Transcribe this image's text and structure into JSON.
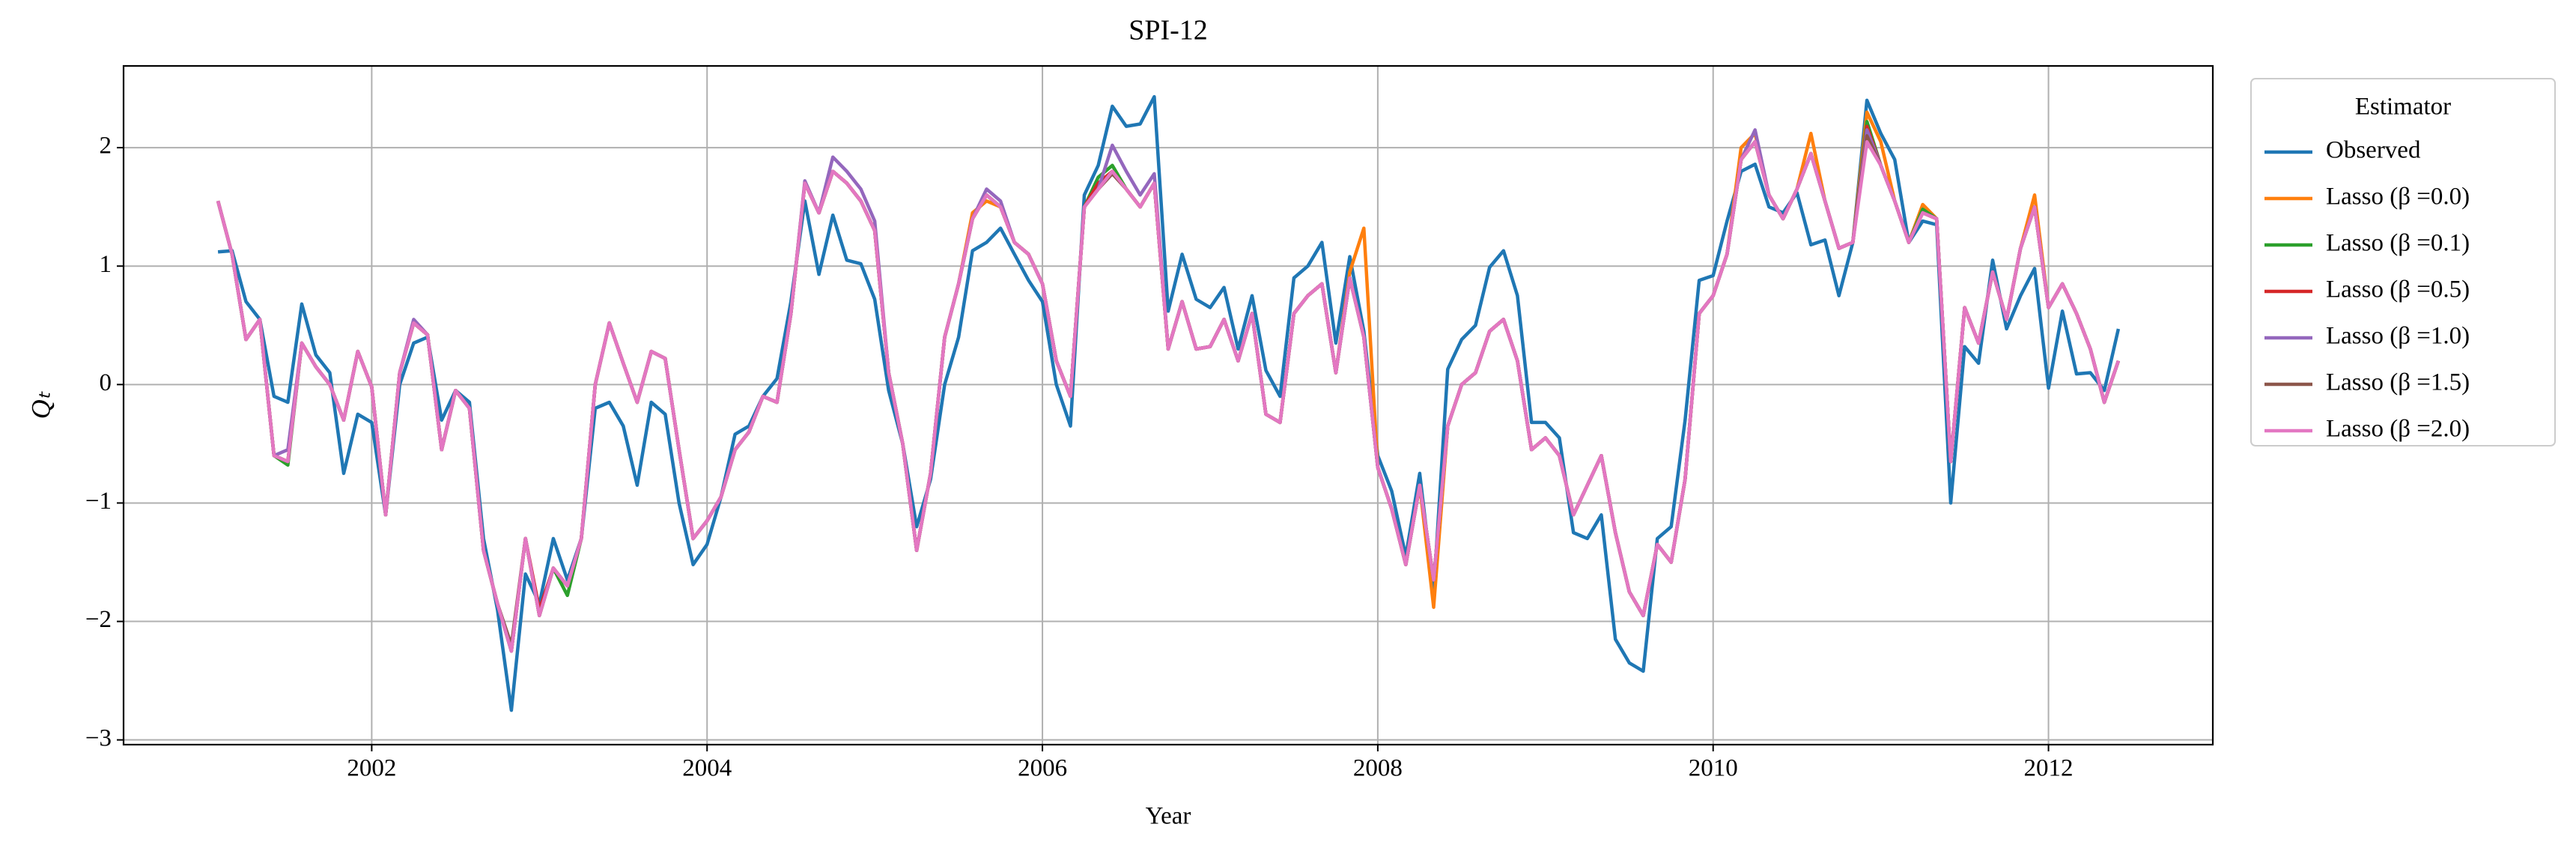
{
  "chart_data": {
    "type": "line",
    "title": "SPI-12",
    "xlabel": "Year",
    "ylabel": "Qₜ",
    "legend_title": "Estimator",
    "legend": "outside upper right",
    "grid": true,
    "xlim": [
      2000.52,
      2012.98
    ],
    "ylim": [
      -3.04,
      2.69
    ],
    "xticks": [
      2002,
      2004,
      2006,
      2008,
      2010,
      2012
    ],
    "yticks": [
      {
        "value": -3,
        "label": "−3"
      },
      {
        "value": -2,
        "label": "−2"
      },
      {
        "value": -1,
        "label": "−1"
      },
      0,
      1,
      2
    ],
    "x": [
      2001.083,
      2001.167,
      2001.25,
      2001.333,
      2001.417,
      2001.5,
      2001.583,
      2001.667,
      2001.75,
      2001.833,
      2001.917,
      2002,
      2002.083,
      2002.167,
      2002.25,
      2002.333,
      2002.417,
      2002.5,
      2002.583,
      2002.667,
      2002.75,
      2002.833,
      2002.917,
      2003,
      2003.083,
      2003.167,
      2003.25,
      2003.333,
      2003.417,
      2003.5,
      2003.583,
      2003.667,
      2003.75,
      2003.833,
      2003.917,
      2004,
      2004.083,
      2004.167,
      2004.25,
      2004.333,
      2004.417,
      2004.5,
      2004.583,
      2004.667,
      2004.75,
      2004.833,
      2004.917,
      2005,
      2005.083,
      2005.167,
      2005.25,
      2005.333,
      2005.417,
      2005.5,
      2005.583,
      2005.667,
      2005.75,
      2005.833,
      2005.917,
      2006,
      2006.083,
      2006.167,
      2006.25,
      2006.333,
      2006.417,
      2006.5,
      2006.583,
      2006.667,
      2006.75,
      2006.833,
      2006.917,
      2007,
      2007.083,
      2007.167,
      2007.25,
      2007.333,
      2007.417,
      2007.5,
      2007.583,
      2007.667,
      2007.75,
      2007.833,
      2007.917,
      2008,
      2008.083,
      2008.167,
      2008.25,
      2008.333,
      2008.417,
      2008.5,
      2008.583,
      2008.667,
      2008.75,
      2008.833,
      2008.917,
      2009,
      2009.083,
      2009.167,
      2009.25,
      2009.333,
      2009.417,
      2009.5,
      2009.583,
      2009.667,
      2009.75,
      2009.833,
      2009.917,
      2010,
      2010.083,
      2010.167,
      2010.25,
      2010.333,
      2010.417,
      2010.5,
      2010.583,
      2010.667,
      2010.75,
      2010.833,
      2010.917,
      2011,
      2011.083,
      2011.167,
      2011.25,
      2011.333,
      2011.417,
      2011.5,
      2011.583,
      2011.667,
      2011.75,
      2011.833,
      2011.917,
      2012,
      2012.083,
      2012.167,
      2012.25,
      2012.333,
      2012.417
    ],
    "series": [
      {
        "name": "Observed",
        "color": "#1f77b4",
        "values": [
          1.12,
          1.13,
          0.7,
          0.55,
          -0.1,
          -0.15,
          0.68,
          0.25,
          0.1,
          -0.75,
          -0.25,
          -0.32,
          -1.1,
          0.0,
          0.35,
          0.4,
          -0.3,
          -0.05,
          -0.15,
          -1.3,
          -1.9,
          -2.75,
          -1.6,
          -1.85,
          -1.3,
          -1.65,
          -1.3,
          -0.2,
          -0.15,
          -0.35,
          -0.85,
          -0.15,
          -0.25,
          -1.0,
          -1.52,
          -1.35,
          -0.95,
          -0.42,
          -0.35,
          -0.1,
          0.05,
          0.7,
          1.55,
          0.93,
          1.43,
          1.05,
          1.02,
          0.72,
          -0.05,
          -0.5,
          -1.2,
          -0.8,
          0.0,
          0.4,
          1.13,
          1.2,
          1.32,
          1.1,
          0.88,
          0.7,
          0.0,
          -0.35,
          1.6,
          1.85,
          2.35,
          2.18,
          2.2,
          2.43,
          0.62,
          1.1,
          0.72,
          0.65,
          0.82,
          0.3,
          0.75,
          0.12,
          -0.1,
          0.9,
          1.0,
          1.2,
          0.35,
          1.08,
          0.45,
          -0.6,
          -0.9,
          -1.45,
          -0.75,
          -1.75,
          0.13,
          0.38,
          0.5,
          0.99,
          1.13,
          0.75,
          -0.32,
          -0.32,
          -0.45,
          -1.25,
          -1.3,
          -1.1,
          -2.15,
          -2.35,
          -2.42,
          -1.3,
          -1.2,
          -0.3,
          0.88,
          0.92,
          1.38,
          1.8,
          1.86,
          1.5,
          1.45,
          1.62,
          1.18,
          1.22,
          0.75,
          1.2,
          2.4,
          2.12,
          1.9,
          1.2,
          1.38,
          1.35,
          -1.0,
          0.32,
          0.18,
          1.05,
          0.47,
          0.75,
          0.98,
          -0.03,
          0.62,
          0.09,
          0.1,
          -0.05,
          0.47
        ]
      },
      {
        "name": "Lasso (β =0.0)",
        "color": "#ff7f0e",
        "values": [
          1.55,
          1.1,
          0.38,
          0.55,
          -0.6,
          -0.65,
          0.35,
          0.15,
          0.0,
          -0.3,
          0.28,
          -0.02,
          -1.1,
          0.1,
          0.52,
          0.42,
          -0.55,
          -0.05,
          -0.2,
          -1.4,
          -1.85,
          -2.25,
          -1.3,
          -1.95,
          -1.55,
          -1.7,
          -1.3,
          0.0,
          0.52,
          0.18,
          -0.15,
          0.28,
          0.22,
          -0.55,
          -1.3,
          -1.15,
          -0.95,
          -0.55,
          -0.4,
          -0.1,
          -0.15,
          0.6,
          1.7,
          1.45,
          1.8,
          1.7,
          1.55,
          1.3,
          0.1,
          -0.5,
          -1.4,
          -0.75,
          0.4,
          0.85,
          1.45,
          1.55,
          1.5,
          1.2,
          1.1,
          0.85,
          0.2,
          -0.1,
          1.5,
          1.65,
          1.8,
          1.65,
          1.5,
          1.7,
          0.3,
          0.7,
          0.3,
          0.32,
          0.55,
          0.2,
          0.6,
          -0.25,
          -0.32,
          0.6,
          0.75,
          0.85,
          0.1,
          0.95,
          1.32,
          -0.7,
          -1.05,
          -1.52,
          -0.85,
          -1.88,
          -0.35,
          0.0,
          0.1,
          0.45,
          0.55,
          0.2,
          -0.55,
          -0.45,
          -0.6,
          -1.1,
          -0.85,
          -0.6,
          -1.25,
          -1.75,
          -1.95,
          -1.35,
          -1.5,
          -0.8,
          0.6,
          0.75,
          1.1,
          2.0,
          2.12,
          1.6,
          1.4,
          1.65,
          2.12,
          1.55,
          1.15,
          1.2,
          2.3,
          2.05,
          1.55,
          1.2,
          1.52,
          1.4,
          -0.65,
          0.65,
          0.35,
          0.95,
          0.55,
          1.15,
          1.6,
          0.65,
          0.85,
          0.6,
          0.3,
          -0.15,
          0.2
        ]
      },
      {
        "name": "Lasso (β =0.1)",
        "color": "#2ca02c",
        "values": [
          1.55,
          1.1,
          0.38,
          0.55,
          -0.6,
          -0.68,
          0.35,
          0.15,
          0.0,
          -0.3,
          0.28,
          -0.02,
          -1.1,
          0.1,
          0.52,
          0.42,
          -0.55,
          -0.05,
          -0.2,
          -1.4,
          -1.85,
          -2.25,
          -1.3,
          -1.95,
          -1.55,
          -1.78,
          -1.3,
          0.0,
          0.52,
          0.18,
          -0.15,
          0.28,
          0.22,
          -0.55,
          -1.3,
          -1.15,
          -0.95,
          -0.55,
          -0.4,
          -0.1,
          -0.15,
          0.6,
          1.7,
          1.45,
          1.8,
          1.7,
          1.55,
          1.3,
          0.1,
          -0.5,
          -1.4,
          -0.75,
          0.4,
          0.85,
          1.4,
          1.6,
          1.5,
          1.2,
          1.1,
          0.85,
          0.2,
          -0.1,
          1.5,
          1.75,
          1.85,
          1.65,
          1.5,
          1.7,
          0.3,
          0.7,
          0.3,
          0.32,
          0.55,
          0.2,
          0.6,
          -0.25,
          -0.32,
          0.6,
          0.75,
          0.85,
          0.1,
          0.9,
          0.4,
          -0.7,
          -1.05,
          -1.52,
          -0.85,
          -1.65,
          -0.35,
          0.0,
          0.1,
          0.45,
          0.55,
          0.2,
          -0.55,
          -0.45,
          -0.6,
          -1.1,
          -0.85,
          -0.6,
          -1.25,
          -1.75,
          -1.95,
          -1.35,
          -1.5,
          -0.8,
          0.6,
          0.75,
          1.1,
          1.9,
          2.05,
          1.6,
          1.4,
          1.65,
          1.95,
          1.55,
          1.15,
          1.2,
          2.22,
          1.85,
          1.55,
          1.2,
          1.48,
          1.4,
          -0.65,
          0.65,
          0.35,
          0.95,
          0.55,
          1.15,
          1.5,
          0.65,
          0.85,
          0.6,
          0.3,
          -0.15,
          0.2
        ]
      },
      {
        "name": "Lasso (β =0.5)",
        "color": "#d62728",
        "values": [
          1.55,
          1.1,
          0.38,
          0.55,
          -0.6,
          -0.65,
          0.35,
          0.15,
          0.0,
          -0.3,
          0.28,
          -0.02,
          -1.1,
          0.1,
          0.52,
          0.42,
          -0.55,
          -0.05,
          -0.2,
          -1.4,
          -1.85,
          -2.25,
          -1.3,
          -1.9,
          -1.55,
          -1.7,
          -1.3,
          0.0,
          0.52,
          0.18,
          -0.15,
          0.28,
          0.22,
          -0.55,
          -1.3,
          -1.15,
          -0.95,
          -0.55,
          -0.4,
          -0.1,
          -0.15,
          0.6,
          1.7,
          1.45,
          1.8,
          1.7,
          1.55,
          1.3,
          0.1,
          -0.5,
          -1.4,
          -0.75,
          0.4,
          0.85,
          1.4,
          1.6,
          1.5,
          1.2,
          1.1,
          0.85,
          0.2,
          -0.1,
          1.5,
          1.7,
          1.8,
          1.65,
          1.5,
          1.7,
          0.3,
          0.7,
          0.3,
          0.32,
          0.55,
          0.2,
          0.6,
          -0.25,
          -0.32,
          0.6,
          0.75,
          0.85,
          0.1,
          0.9,
          0.4,
          -0.7,
          -1.05,
          -1.52,
          -0.85,
          -1.65,
          -0.35,
          0.0,
          0.1,
          0.45,
          0.55,
          0.2,
          -0.55,
          -0.45,
          -0.6,
          -1.1,
          -0.85,
          -0.6,
          -1.25,
          -1.75,
          -1.95,
          -1.35,
          -1.5,
          -0.8,
          0.6,
          0.75,
          1.1,
          1.9,
          2.05,
          1.6,
          1.4,
          1.65,
          1.95,
          1.55,
          1.15,
          1.2,
          2.18,
          1.85,
          1.55,
          1.2,
          1.45,
          1.4,
          -0.65,
          0.65,
          0.35,
          0.95,
          0.55,
          1.15,
          1.5,
          0.65,
          0.85,
          0.6,
          0.3,
          -0.15,
          0.2
        ]
      },
      {
        "name": "Lasso (β =1.0)",
        "color": "#9467bd",
        "values": [
          1.55,
          1.1,
          0.38,
          0.55,
          -0.6,
          -0.55,
          0.35,
          0.15,
          0.0,
          -0.3,
          0.28,
          -0.02,
          -1.1,
          0.1,
          0.55,
          0.42,
          -0.55,
          -0.05,
          -0.2,
          -1.4,
          -1.85,
          -2.25,
          -1.3,
          -1.95,
          -1.55,
          -1.7,
          -1.3,
          0.0,
          0.52,
          0.18,
          -0.15,
          0.28,
          0.22,
          -0.55,
          -1.3,
          -1.15,
          -0.95,
          -0.55,
          -0.4,
          -0.1,
          -0.15,
          0.6,
          1.72,
          1.45,
          1.92,
          1.8,
          1.65,
          1.38,
          0.1,
          -0.5,
          -1.4,
          -0.75,
          0.4,
          0.85,
          1.4,
          1.65,
          1.55,
          1.2,
          1.1,
          0.85,
          0.2,
          -0.1,
          1.5,
          1.65,
          2.02,
          1.8,
          1.6,
          1.78,
          0.3,
          0.7,
          0.3,
          0.32,
          0.55,
          0.2,
          0.6,
          -0.25,
          -0.32,
          0.6,
          0.75,
          0.85,
          0.1,
          0.9,
          0.4,
          -0.7,
          -1.05,
          -1.52,
          -0.85,
          -1.65,
          -0.35,
          0.0,
          0.1,
          0.45,
          0.55,
          0.2,
          -0.55,
          -0.45,
          -0.6,
          -1.1,
          -0.85,
          -0.6,
          -1.25,
          -1.75,
          -1.95,
          -1.35,
          -1.5,
          -0.8,
          0.6,
          0.75,
          1.1,
          1.9,
          2.15,
          1.6,
          1.4,
          1.65,
          1.95,
          1.55,
          1.15,
          1.2,
          2.15,
          1.85,
          1.55,
          1.2,
          1.45,
          1.4,
          -0.65,
          0.65,
          0.35,
          0.95,
          0.55,
          1.15,
          1.5,
          0.65,
          0.85,
          0.6,
          0.3,
          -0.15,
          0.2
        ]
      },
      {
        "name": "Lasso (β =1.5)",
        "color": "#8c564b",
        "values": [
          1.55,
          1.1,
          0.38,
          0.55,
          -0.6,
          -0.65,
          0.35,
          0.15,
          0.0,
          -0.3,
          0.28,
          -0.02,
          -1.1,
          0.1,
          0.52,
          0.42,
          -0.55,
          -0.05,
          -0.2,
          -1.4,
          -1.85,
          -2.2,
          -1.3,
          -1.95,
          -1.55,
          -1.7,
          -1.3,
          0.0,
          0.52,
          0.18,
          -0.15,
          0.28,
          0.22,
          -0.55,
          -1.3,
          -1.15,
          -0.95,
          -0.55,
          -0.4,
          -0.1,
          -0.15,
          0.6,
          1.7,
          1.45,
          1.8,
          1.7,
          1.55,
          1.3,
          0.1,
          -0.5,
          -1.4,
          -0.75,
          0.4,
          0.85,
          1.4,
          1.6,
          1.5,
          1.2,
          1.1,
          0.85,
          0.2,
          -0.1,
          1.5,
          1.65,
          1.78,
          1.65,
          1.5,
          1.7,
          0.3,
          0.7,
          0.3,
          0.32,
          0.55,
          0.2,
          0.6,
          -0.25,
          -0.32,
          0.6,
          0.75,
          0.85,
          0.1,
          0.9,
          0.4,
          -0.7,
          -1.05,
          -1.52,
          -0.85,
          -1.65,
          -0.35,
          0.0,
          0.1,
          0.45,
          0.55,
          0.2,
          -0.55,
          -0.45,
          -0.6,
          -1.1,
          -0.85,
          -0.6,
          -1.25,
          -1.75,
          -1.95,
          -1.35,
          -1.5,
          -0.8,
          0.6,
          0.75,
          1.1,
          1.9,
          2.05,
          1.6,
          1.4,
          1.65,
          1.95,
          1.55,
          1.15,
          1.2,
          2.1,
          1.85,
          1.55,
          1.2,
          1.45,
          1.4,
          -0.65,
          0.65,
          0.35,
          0.95,
          0.55,
          1.15,
          1.5,
          0.65,
          0.85,
          0.6,
          0.3,
          -0.15,
          0.2
        ]
      },
      {
        "name": "Lasso (β =2.0)",
        "color": "#e377c2",
        "values": [
          1.55,
          1.1,
          0.38,
          0.55,
          -0.6,
          -0.65,
          0.35,
          0.15,
          0.0,
          -0.3,
          0.28,
          -0.02,
          -1.1,
          0.1,
          0.52,
          0.42,
          -0.55,
          -0.05,
          -0.2,
          -1.4,
          -1.85,
          -2.25,
          -1.3,
          -1.95,
          -1.55,
          -1.7,
          -1.3,
          0.0,
          0.52,
          0.18,
          -0.15,
          0.28,
          0.22,
          -0.55,
          -1.3,
          -1.15,
          -0.95,
          -0.55,
          -0.4,
          -0.1,
          -0.15,
          0.6,
          1.7,
          1.45,
          1.8,
          1.7,
          1.55,
          1.3,
          0.1,
          -0.5,
          -1.4,
          -0.75,
          0.4,
          0.85,
          1.4,
          1.6,
          1.5,
          1.2,
          1.1,
          0.85,
          0.2,
          -0.1,
          1.5,
          1.65,
          1.8,
          1.65,
          1.5,
          1.7,
          0.3,
          0.7,
          0.3,
          0.32,
          0.55,
          0.2,
          0.6,
          -0.25,
          -0.32,
          0.6,
          0.75,
          0.85,
          0.1,
          0.9,
          0.4,
          -0.7,
          -1.05,
          -1.52,
          -0.85,
          -1.65,
          -0.35,
          0.0,
          0.1,
          0.45,
          0.55,
          0.2,
          -0.55,
          -0.45,
          -0.6,
          -1.1,
          -0.85,
          -0.6,
          -1.25,
          -1.75,
          -1.95,
          -1.35,
          -1.5,
          -0.8,
          0.6,
          0.75,
          1.1,
          1.9,
          2.05,
          1.6,
          1.4,
          1.65,
          1.95,
          1.55,
          1.15,
          1.2,
          2.05,
          1.85,
          1.55,
          1.2,
          1.45,
          1.4,
          -0.65,
          0.65,
          0.35,
          0.95,
          0.55,
          1.15,
          1.5,
          0.65,
          0.85,
          0.6,
          0.3,
          -0.15,
          0.2
        ]
      }
    ]
  }
}
